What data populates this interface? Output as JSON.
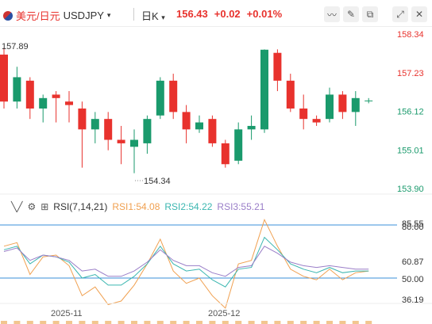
{
  "header": {
    "pair_cn": "美元/日元",
    "pair_code": "USDJPY",
    "timeframe": "日K",
    "price": "156.43",
    "change": "+0.02",
    "change_pct": "+0.01%"
  },
  "toolbar": {
    "icons": [
      "area-chart-icon",
      "draw-icon",
      "settings-icon",
      "fullscreen-icon",
      "close-icon"
    ]
  },
  "price_axis": {
    "labels": [
      "158.34",
      "157.23",
      "156.12",
      "155.01",
      "153.90"
    ]
  },
  "annotations": {
    "high_label": "157.89",
    "low_label": "154.34"
  },
  "rsi": {
    "title": "RSI(7,14,21)",
    "rsi1": "RSI1:54.08",
    "rsi2": "RSI2:54.22",
    "rsi3": "RSI3:55.21",
    "axis_labels": [
      "85.55",
      "80.00",
      "60.87",
      "50.00",
      "36.19"
    ]
  },
  "time_axis": {
    "labels": [
      "2025-11",
      "2025-12"
    ]
  },
  "colors": {
    "up": "#1a9a6c",
    "down": "#e8322d",
    "rsi1": "#f0a050",
    "rsi2": "#3bb6b0",
    "rsi3": "#9a7ec8",
    "level": "#3a8fd8"
  },
  "chart_data": {
    "type": "candlestick",
    "ylim": [
      153.9,
      158.34
    ],
    "candles": [
      {
        "o": 157.75,
        "h": 157.95,
        "l": 156.2,
        "c": 156.4
      },
      {
        "o": 156.4,
        "h": 157.4,
        "l": 156.2,
        "c": 157.1
      },
      {
        "o": 157.0,
        "h": 157.1,
        "l": 155.9,
        "c": 156.2
      },
      {
        "o": 156.2,
        "h": 156.6,
        "l": 155.8,
        "c": 156.5
      },
      {
        "o": 156.6,
        "h": 156.7,
        "l": 155.8,
        "c": 156.5
      },
      {
        "o": 156.4,
        "h": 156.7,
        "l": 155.8,
        "c": 156.3
      },
      {
        "o": 156.2,
        "h": 156.4,
        "l": 154.5,
        "c": 155.6
      },
      {
        "o": 155.6,
        "h": 156.1,
        "l": 155.2,
        "c": 155.9
      },
      {
        "o": 155.9,
        "h": 156.1,
        "l": 155.0,
        "c": 155.3
      },
      {
        "o": 155.3,
        "h": 155.7,
        "l": 154.6,
        "c": 155.2
      },
      {
        "o": 155.1,
        "h": 155.6,
        "l": 154.34,
        "c": 155.3
      },
      {
        "o": 155.2,
        "h": 156.0,
        "l": 154.9,
        "c": 155.9
      },
      {
        "o": 156.0,
        "h": 157.1,
        "l": 155.9,
        "c": 157.0
      },
      {
        "o": 157.0,
        "h": 157.2,
        "l": 155.9,
        "c": 156.1
      },
      {
        "o": 156.1,
        "h": 156.3,
        "l": 155.2,
        "c": 155.6
      },
      {
        "o": 155.6,
        "h": 156.0,
        "l": 155.5,
        "c": 155.8
      },
      {
        "o": 155.9,
        "h": 156.0,
        "l": 155.1,
        "c": 155.2
      },
      {
        "o": 155.2,
        "h": 155.3,
        "l": 154.5,
        "c": 154.6
      },
      {
        "o": 154.7,
        "h": 155.8,
        "l": 154.6,
        "c": 155.6
      },
      {
        "o": 155.6,
        "h": 156.0,
        "l": 155.3,
        "c": 155.7
      },
      {
        "o": 155.6,
        "h": 157.9,
        "l": 155.5,
        "c": 157.89
      },
      {
        "o": 157.8,
        "h": 157.9,
        "l": 156.7,
        "c": 157.0
      },
      {
        "o": 157.0,
        "h": 157.2,
        "l": 156.1,
        "c": 156.2
      },
      {
        "o": 156.2,
        "h": 156.6,
        "l": 155.6,
        "c": 155.9
      },
      {
        "o": 155.9,
        "h": 156.0,
        "l": 155.7,
        "c": 155.8
      },
      {
        "o": 155.9,
        "h": 156.8,
        "l": 155.8,
        "c": 156.6
      },
      {
        "o": 156.6,
        "h": 156.7,
        "l": 155.9,
        "c": 156.1
      },
      {
        "o": 156.1,
        "h": 156.7,
        "l": 155.7,
        "c": 156.5
      },
      {
        "o": 156.43,
        "h": 156.5,
        "l": 156.35,
        "c": 156.43
      }
    ],
    "rsi_ylim": [
      30,
      90
    ],
    "rsi_levels": [
      80,
      50
    ],
    "rsi1": [
      68,
      70,
      52,
      62,
      63,
      57,
      40,
      45,
      35,
      37,
      46,
      58,
      72,
      54,
      47,
      50,
      40,
      33,
      58,
      60,
      83,
      68,
      55,
      51,
      49,
      55,
      49,
      53,
      54
    ],
    "rsi2": [
      66,
      68,
      58,
      63,
      62,
      59,
      50,
      52,
      46,
      46,
      51,
      58,
      68,
      58,
      54,
      55,
      49,
      45,
      55,
      56,
      73,
      66,
      58,
      55,
      53,
      56,
      53,
      54,
      54
    ],
    "rsi3": [
      65,
      67,
      60,
      63,
      62,
      60,
      54,
      55,
      51,
      51,
      54,
      59,
      66,
      60,
      57,
      57,
      53,
      51,
      56,
      57,
      68,
      64,
      59,
      57,
      56,
      57,
      56,
      55,
      55
    ]
  }
}
